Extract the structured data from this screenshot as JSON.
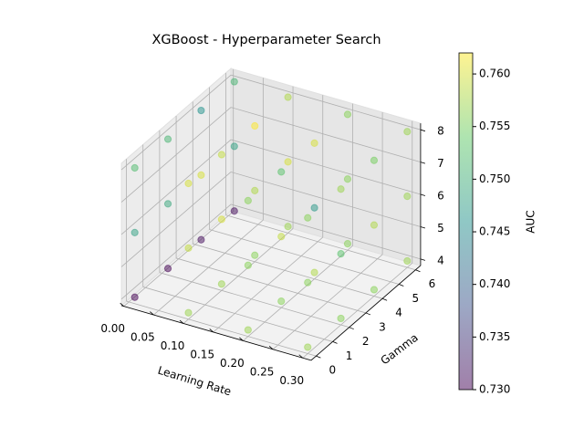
{
  "chart_data": {
    "type": "scatter3d",
    "title": "XGBoost - Hyperparameter Search",
    "x_label": "Learning Rate",
    "y_label": "Gamma",
    "colorbar_label": "AUC",
    "x": [
      0.01,
      0.01,
      0.01,
      0.01,
      0.01,
      0.01,
      0.01,
      0.01,
      0.01,
      0.01,
      0.01,
      0.01,
      0.1,
      0.1,
      0.1,
      0.1,
      0.1,
      0.1,
      0.1,
      0.1,
      0.1,
      0.1,
      0.1,
      0.1,
      0.2,
      0.2,
      0.2,
      0.2,
      0.2,
      0.2,
      0.2,
      0.2,
      0.2,
      0.2,
      0.2,
      0.2,
      0.3,
      0.3,
      0.3,
      0.3,
      0.3,
      0.3,
      0.3,
      0.3,
      0.3,
      0.3,
      0.3,
      0.3
    ],
    "y": [
      0,
      0,
      0,
      2,
      2,
      2,
      4,
      4,
      4,
      6,
      6,
      6,
      0,
      0,
      0,
      2,
      2,
      2,
      4,
      4,
      4,
      6,
      6,
      6,
      0,
      0,
      0,
      2,
      2,
      2,
      4,
      4,
      4,
      6,
      6,
      6,
      0,
      0,
      0,
      2,
      2,
      2,
      4,
      4,
      4,
      6,
      6,
      6
    ],
    "z": [
      4,
      6,
      8,
      4,
      6,
      8,
      4,
      6,
      8,
      4,
      6,
      8,
      4,
      6,
      8,
      4,
      6,
      8,
      4,
      6,
      8,
      4,
      6,
      8,
      4,
      6,
      8,
      4,
      6,
      8,
      4,
      6,
      8,
      4,
      6,
      8,
      4,
      6,
      8,
      4,
      6,
      8,
      4,
      6,
      8,
      4,
      6,
      8
    ],
    "values": [
      0.73,
      0.748,
      0.752,
      0.73,
      0.749,
      0.751,
      0.731,
      0.76,
      0.746,
      0.731,
      0.748,
      0.751,
      0.757,
      0.759,
      0.76,
      0.757,
      0.76,
      0.759,
      0.756,
      0.758,
      0.762,
      0.757,
      0.76,
      0.758,
      0.757,
      0.756,
      0.756,
      0.756,
      0.759,
      0.753,
      0.758,
      0.747,
      0.76,
      0.756,
      0.756,
      0.756,
      0.757,
      0.756,
      0.756,
      0.756,
      0.753,
      0.757,
      0.756,
      0.758,
      0.755,
      0.757,
      0.757,
      0.757
    ],
    "colormap": "viridis",
    "alpha": 0.5,
    "xlim": [
      -0.004,
      0.314
    ],
    "ylim": [
      -0.3,
      6.3
    ],
    "zlim": [
      3.8,
      8.2
    ],
    "clim": [
      0.73,
      0.762
    ],
    "xticks": [
      {
        "value": 0,
        "label": "0.00"
      },
      {
        "value": 0.05,
        "label": "0.05"
      },
      {
        "value": 0.1,
        "label": "0.10"
      },
      {
        "value": 0.15,
        "label": "0.15"
      },
      {
        "value": 0.2,
        "label": "0.20"
      },
      {
        "value": 0.25,
        "label": "0.25"
      },
      {
        "value": 0.3,
        "label": "0.30"
      }
    ],
    "yticks": [
      0,
      1,
      2,
      3,
      4,
      5,
      6
    ],
    "zticks": [
      4,
      5,
      6,
      7,
      8
    ],
    "cticks": [
      {
        "value": 0.73,
        "label": "0.730"
      },
      {
        "value": 0.735,
        "label": "0.735"
      },
      {
        "value": 0.74,
        "label": "0.740"
      },
      {
        "value": 0.745,
        "label": "0.745"
      },
      {
        "value": 0.75,
        "label": "0.750"
      },
      {
        "value": 0.755,
        "label": "0.755"
      },
      {
        "value": 0.76,
        "label": "0.760"
      }
    ],
    "grid": true
  }
}
